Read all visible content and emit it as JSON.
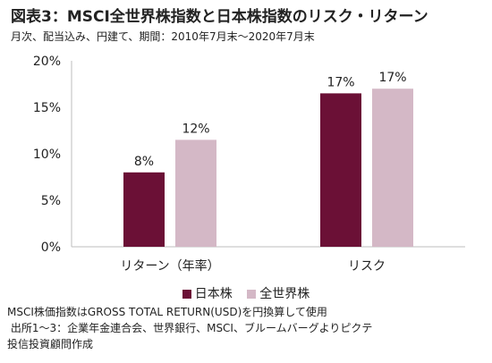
{
  "title": "図表3：MSCI全世界株指数と日本株指数のリスク・リターン",
  "subtitle": "月次、配当込み、円建て、期間：2010年7月末～2020年7月末",
  "notes": [
    "MSCI株価指数はGROSS TOTAL RETURN(USD)を円換算して使用",
    " 出所1～3：企業年金連合会、世界銀行、MSCI、ブルームバーグよりピクテ",
    "投信投資顧問作成"
  ],
  "chart_data": {
    "type": "bar",
    "categories": [
      "リターン（年率）",
      "リスク"
    ],
    "series": [
      {
        "name": "日本株",
        "values": [
          8,
          16.5
        ],
        "labels": [
          "8%",
          "17%"
        ],
        "color": "#6b1036"
      },
      {
        "name": "全世界株",
        "values": [
          11.5,
          17
        ],
        "labels": [
          "12%",
          "17%"
        ],
        "color": "#d4b8c6"
      }
    ],
    "yticks": [
      "0%",
      "5%",
      "10%",
      "15%",
      "20%"
    ],
    "ylim": [
      0,
      20
    ],
    "grid": false,
    "legend": "bottom"
  }
}
